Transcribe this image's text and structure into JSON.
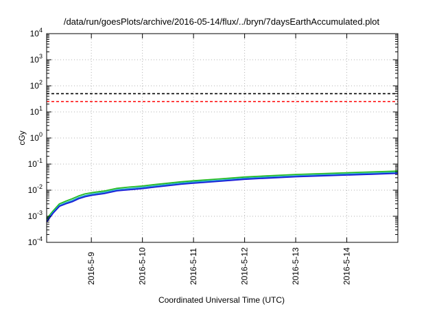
{
  "chart_data": {
    "type": "line",
    "title": "/data/run/goesPlots/archive/2016-05-14/flux/../bryn/7daysEarthAccumulated.plot",
    "xlabel": "Coordinated Universal Time (UTC)",
    "ylabel": "cGy",
    "y_scale": "log",
    "ylim": [
      0.0001,
      10000
    ],
    "y_ticks": [
      {
        "base": "10",
        "exp": "-4"
      },
      {
        "base": "10",
        "exp": "-3"
      },
      {
        "base": "10",
        "exp": "-2"
      },
      {
        "base": "10",
        "exp": "-1"
      },
      {
        "base": "10",
        "exp": "0"
      },
      {
        "base": "10",
        "exp": "1"
      },
      {
        "base": "10",
        "exp": "2"
      },
      {
        "base": "10",
        "exp": "3"
      },
      {
        "base": "10",
        "exp": "4"
      }
    ],
    "xlim": [
      "2016-05-08 03:00",
      "2016-05-14 23:59"
    ],
    "x_ticks": [
      "2016-5-9",
      "2016-5-10",
      "2016-5-11",
      "2016-5-12",
      "2016-5-13",
      "2016-5-14"
    ],
    "grid": true,
    "legend": "none",
    "thresholds": [
      {
        "value": 50,
        "color": "#000000",
        "style": "dashed"
      },
      {
        "value": 25,
        "color": "#ff0000",
        "style": "dashed"
      }
    ],
    "x": [
      "2016-05-08 03:00",
      "2016-05-08 06:00",
      "2016-05-08 09:00",
      "2016-05-08 12:00",
      "2016-05-08 15:00",
      "2016-05-08 18:00",
      "2016-05-08 21:00",
      "2016-05-09 00:00",
      "2016-05-09 06:00",
      "2016-05-09 12:00",
      "2016-05-09 18:00",
      "2016-05-10 00:00",
      "2016-05-10 06:00",
      "2016-05-10 12:00",
      "2016-05-10 18:00",
      "2016-05-11 00:00",
      "2016-05-11 12:00",
      "2016-05-12 00:00",
      "2016-05-12 12:00",
      "2016-05-13 00:00",
      "2016-05-13 12:00",
      "2016-05-14 00:00",
      "2016-05-14 12:00",
      "2016-05-14 23:59"
    ],
    "series": [
      {
        "color": "#22bb22",
        "values": [
          0.0008,
          0.0016,
          0.003,
          0.0038,
          0.0047,
          0.006,
          0.0072,
          0.008,
          0.0093,
          0.0118,
          0.0132,
          0.0145,
          0.0165,
          0.0185,
          0.021,
          0.023,
          0.027,
          0.032,
          0.036,
          0.04,
          0.043,
          0.0465,
          0.05,
          0.054
        ]
      },
      {
        "color": "#22a0d0",
        "values": [
          0.0007,
          0.0014,
          0.0026,
          0.0033,
          0.004,
          0.0052,
          0.0062,
          0.007,
          0.0082,
          0.0104,
          0.0116,
          0.0128,
          0.0146,
          0.0164,
          0.0186,
          0.0204,
          0.024,
          0.0285,
          0.032,
          0.0355,
          0.0385,
          0.0415,
          0.0445,
          0.048
        ]
      },
      {
        "color": "#1a1ad8",
        "values": [
          0.0006,
          0.0013,
          0.0024,
          0.003,
          0.0036,
          0.0047,
          0.0056,
          0.0063,
          0.0074,
          0.0094,
          0.0104,
          0.0115,
          0.0131,
          0.0148,
          0.0168,
          0.0184,
          0.0218,
          0.026,
          0.0292,
          0.0325,
          0.0352,
          0.038,
          0.0408,
          0.044
        ]
      }
    ]
  }
}
